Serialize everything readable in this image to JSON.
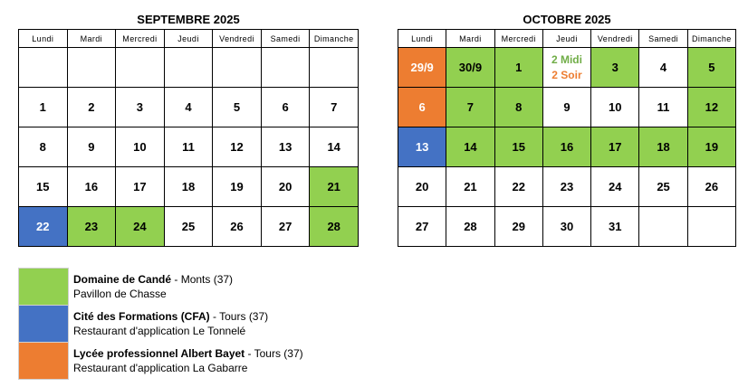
{
  "weekdays": [
    "Lundi",
    "Mardi",
    "Mercredi",
    "Jeudi",
    "Vendredi",
    "Samedi",
    "Dimanche"
  ],
  "colors": {
    "green": "#92d050",
    "blue": "#4472c4",
    "orange": "#ed7d31"
  },
  "calendars": [
    {
      "title": "SEPTEMBRE 2025",
      "weeks": [
        [
          {
            "t": ""
          },
          {
            "t": ""
          },
          {
            "t": ""
          },
          {
            "t": ""
          },
          {
            "t": ""
          },
          {
            "t": ""
          },
          {
            "t": ""
          }
        ],
        [
          {
            "t": "1"
          },
          {
            "t": "2"
          },
          {
            "t": "3"
          },
          {
            "t": "4"
          },
          {
            "t": "5"
          },
          {
            "t": "6"
          },
          {
            "t": "7"
          }
        ],
        [
          {
            "t": "8"
          },
          {
            "t": "9"
          },
          {
            "t": "10"
          },
          {
            "t": "11"
          },
          {
            "t": "12"
          },
          {
            "t": "13"
          },
          {
            "t": "14"
          }
        ],
        [
          {
            "t": "15"
          },
          {
            "t": "16"
          },
          {
            "t": "17"
          },
          {
            "t": "18"
          },
          {
            "t": "19"
          },
          {
            "t": "20"
          },
          {
            "t": "21",
            "c": "green"
          }
        ],
        [
          {
            "t": "22",
            "c": "blue"
          },
          {
            "t": "23",
            "c": "green"
          },
          {
            "t": "24",
            "c": "green"
          },
          {
            "t": "25"
          },
          {
            "t": "26"
          },
          {
            "t": "27"
          },
          {
            "t": "28",
            "c": "green"
          }
        ]
      ]
    },
    {
      "title": "OCTOBRE 2025",
      "weeks": [
        [
          {
            "t": "29/9",
            "c": "orange"
          },
          {
            "t": "30/9",
            "c": "green"
          },
          {
            "t": "1",
            "c": "green"
          },
          {
            "t": "",
            "split": [
              "2 Midi",
              "2 Soir"
            ]
          },
          {
            "t": "3",
            "c": "green"
          },
          {
            "t": "4"
          },
          {
            "t": "5",
            "c": "green"
          }
        ],
        [
          {
            "t": "6",
            "c": "orange"
          },
          {
            "t": "7",
            "c": "green"
          },
          {
            "t": "8",
            "c": "green"
          },
          {
            "t": "9"
          },
          {
            "t": "10"
          },
          {
            "t": "11"
          },
          {
            "t": "12",
            "c": "green"
          }
        ],
        [
          {
            "t": "13",
            "c": "blue"
          },
          {
            "t": "14",
            "c": "green"
          },
          {
            "t": "15",
            "c": "green"
          },
          {
            "t": "16",
            "c": "green"
          },
          {
            "t": "17",
            "c": "green"
          },
          {
            "t": "18",
            "c": "green"
          },
          {
            "t": "19",
            "c": "green"
          }
        ],
        [
          {
            "t": "20"
          },
          {
            "t": "21"
          },
          {
            "t": "22"
          },
          {
            "t": "23"
          },
          {
            "t": "24"
          },
          {
            "t": "25"
          },
          {
            "t": "26"
          }
        ],
        [
          {
            "t": "27"
          },
          {
            "t": "28"
          },
          {
            "t": "29"
          },
          {
            "t": "30"
          },
          {
            "t": "31"
          },
          {
            "t": ""
          },
          {
            "t": ""
          }
        ]
      ]
    }
  ],
  "legend": [
    {
      "color": "green",
      "name": "Domaine de Candé",
      "place": " - Monts (37)",
      "detail": "Pavillon de Chasse"
    },
    {
      "color": "blue",
      "name": "Cité des Formations (CFA)",
      "place": " - Tours (37)",
      "detail": "Restaurant d'application Le Tonnelé"
    },
    {
      "color": "orange",
      "name": "Lycée professionnel Albert Bayet",
      "place": " - Tours (37)",
      "detail": " Restaurant d'application La Gabarre"
    }
  ]
}
